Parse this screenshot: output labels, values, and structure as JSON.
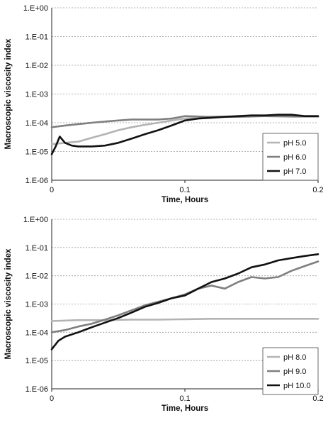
{
  "chart_data": [
    {
      "type": "line",
      "title": "",
      "xlabel": "Time, Hours",
      "ylabel": "Macroscopic viscosity index",
      "yscale": "log",
      "xlim": [
        0,
        0.2
      ],
      "ylim": [
        1e-06,
        1
      ],
      "xticks": [
        0,
        0.1,
        0.2
      ],
      "xtick_labels": [
        "0",
        "0.1",
        "0.2"
      ],
      "yticks": [
        1e-06,
        1e-05,
        0.0001,
        0.001,
        0.01,
        0.1,
        1
      ],
      "ytick_labels": [
        "1.E-06",
        "1.E-05",
        "1.E-04",
        "1.E-03",
        "1.E-02",
        "1.E-01",
        "1.E+00"
      ],
      "grid": "horizontal dashed",
      "legend_position": "bottom-right",
      "series": [
        {
          "name": "pH 5.0",
          "color": "#b3b3b3",
          "points": [
            [
              0,
              1.8e-05
            ],
            [
              0.01,
              2e-05
            ],
            [
              0.02,
              2.2e-05
            ],
            [
              0.03,
              3e-05
            ],
            [
              0.04,
              4e-05
            ],
            [
              0.05,
              5.5e-05
            ],
            [
              0.06,
              7e-05
            ],
            [
              0.07,
              8.5e-05
            ],
            [
              0.08,
              0.0001
            ],
            [
              0.09,
              0.00012
            ],
            [
              0.1,
              0.00014
            ],
            [
              0.12,
              0.00016
            ],
            [
              0.14,
              0.00017
            ],
            [
              0.16,
              0.00017
            ],
            [
              0.18,
              0.00016
            ],
            [
              0.2,
              0.00016
            ]
          ]
        },
        {
          "name": "pH 6.0",
          "color": "#7f7f7f",
          "points": [
            [
              0,
              7e-05
            ],
            [
              0.01,
              8e-05
            ],
            [
              0.02,
              9e-05
            ],
            [
              0.03,
              0.0001
            ],
            [
              0.04,
              0.00011
            ],
            [
              0.05,
              0.00012
            ],
            [
              0.06,
              0.00013
            ],
            [
              0.07,
              0.00013
            ],
            [
              0.08,
              0.00013
            ],
            [
              0.09,
              0.00014
            ],
            [
              0.1,
              0.00017
            ],
            [
              0.12,
              0.00016
            ],
            [
              0.14,
              0.00016
            ],
            [
              0.16,
              0.00017
            ],
            [
              0.18,
              0.00017
            ],
            [
              0.2,
              0.00017
            ]
          ]
        },
        {
          "name": "pH 7.0",
          "color": "#111111",
          "points": [
            [
              0,
              8e-06
            ],
            [
              0.003,
              1.5e-05
            ],
            [
              0.006,
              3.3e-05
            ],
            [
              0.01,
              2e-05
            ],
            [
              0.015,
              1.6e-05
            ],
            [
              0.02,
              1.5e-05
            ],
            [
              0.03,
              1.5e-05
            ],
            [
              0.04,
              1.6e-05
            ],
            [
              0.05,
              2e-05
            ],
            [
              0.06,
              2.8e-05
            ],
            [
              0.07,
              4e-05
            ],
            [
              0.08,
              5.5e-05
            ],
            [
              0.09,
              8e-05
            ],
            [
              0.1,
              0.00012
            ],
            [
              0.11,
              0.00014
            ],
            [
              0.12,
              0.00015
            ],
            [
              0.13,
              0.00016
            ],
            [
              0.14,
              0.00017
            ],
            [
              0.15,
              0.00018
            ],
            [
              0.16,
              0.00018
            ],
            [
              0.17,
              0.00019
            ],
            [
              0.18,
              0.00019
            ],
            [
              0.19,
              0.00017
            ],
            [
              0.2,
              0.00017
            ]
          ]
        }
      ]
    },
    {
      "type": "line",
      "title": "",
      "xlabel": "Time, Hours",
      "ylabel": "Macroscopic viscosity index",
      "yscale": "log",
      "xlim": [
        0,
        0.2
      ],
      "ylim": [
        1e-06,
        1
      ],
      "xticks": [
        0,
        0.1,
        0.2
      ],
      "xtick_labels": [
        "0",
        "0.1",
        "0.2"
      ],
      "yticks": [
        1e-06,
        1e-05,
        0.0001,
        0.001,
        0.01,
        0.1,
        1
      ],
      "ytick_labels": [
        "1.E-06",
        "1.E-05",
        "1.E-04",
        "1.E-03",
        "1.E-02",
        "1.E-01",
        "1.E+00"
      ],
      "grid": "horizontal dashed",
      "legend_position": "bottom-right",
      "series": [
        {
          "name": "pH 8.0",
          "color": "#b3b3b3",
          "points": [
            [
              0,
              0.00025
            ],
            [
              0.02,
              0.00027
            ],
            [
              0.04,
              0.00027
            ],
            [
              0.06,
              0.00028
            ],
            [
              0.08,
              0.00028
            ],
            [
              0.1,
              0.00029
            ],
            [
              0.12,
              0.0003
            ],
            [
              0.14,
              0.0003
            ],
            [
              0.16,
              0.0003
            ],
            [
              0.18,
              0.0003
            ],
            [
              0.2,
              0.0003
            ]
          ]
        },
        {
          "name": "pH 9.0",
          "color": "#7f7f7f",
          "points": [
            [
              0,
              0.0001
            ],
            [
              0.01,
              0.00012
            ],
            [
              0.02,
              0.00016
            ],
            [
              0.03,
              0.0002
            ],
            [
              0.04,
              0.00028
            ],
            [
              0.05,
              0.0004
            ],
            [
              0.06,
              0.0006
            ],
            [
              0.07,
              0.0009
            ],
            [
              0.08,
              0.0012
            ],
            [
              0.09,
              0.0016
            ],
            [
              0.1,
              0.0022
            ],
            [
              0.11,
              0.0035
            ],
            [
              0.12,
              0.0045
            ],
            [
              0.13,
              0.0035
            ],
            [
              0.14,
              0.006
            ],
            [
              0.15,
              0.009
            ],
            [
              0.16,
              0.008
            ],
            [
              0.17,
              0.009
            ],
            [
              0.18,
              0.015
            ],
            [
              0.19,
              0.022
            ],
            [
              0.2,
              0.032
            ]
          ]
        },
        {
          "name": "pH 10.0",
          "color": "#111111",
          "points": [
            [
              0,
              2.5e-05
            ],
            [
              0.005,
              5e-05
            ],
            [
              0.01,
              7e-05
            ],
            [
              0.02,
              0.0001
            ],
            [
              0.03,
              0.00015
            ],
            [
              0.04,
              0.00022
            ],
            [
              0.05,
              0.00032
            ],
            [
              0.06,
              0.0005
            ],
            [
              0.07,
              0.0008
            ],
            [
              0.08,
              0.0011
            ],
            [
              0.09,
              0.0016
            ],
            [
              0.1,
              0.002
            ],
            [
              0.11,
              0.0035
            ],
            [
              0.12,
              0.006
            ],
            [
              0.13,
              0.008
            ],
            [
              0.14,
              0.012
            ],
            [
              0.15,
              0.02
            ],
            [
              0.16,
              0.025
            ],
            [
              0.17,
              0.035
            ],
            [
              0.18,
              0.042
            ],
            [
              0.19,
              0.05
            ],
            [
              0.2,
              0.058
            ]
          ]
        }
      ]
    }
  ]
}
